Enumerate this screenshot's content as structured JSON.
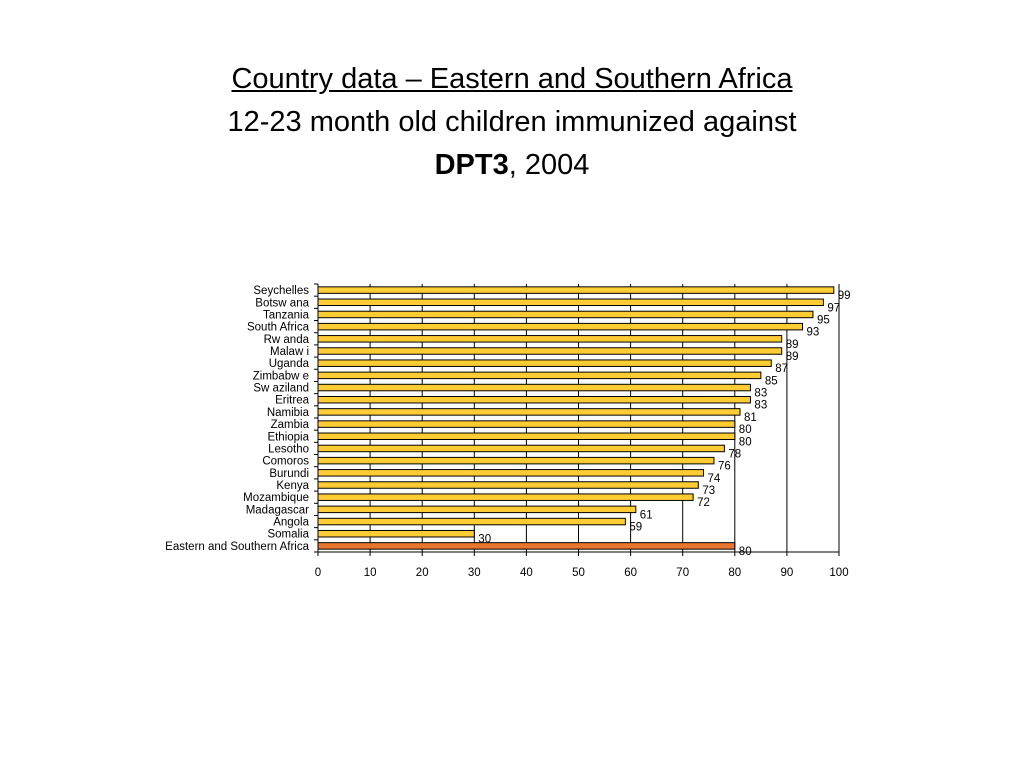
{
  "title": {
    "line1": "Country data – Eastern and Southern Africa",
    "line2": "12-23 month old children immunized against",
    "line3_bold": "DPT3",
    "line3_rest": ", 2004"
  },
  "colors": {
    "bar_fill": "#FFCC33",
    "highlight_fill": "#E8762E",
    "bar_stroke": "#000000",
    "grid": "#000000"
  },
  "chart_data": {
    "type": "bar",
    "orientation": "horizontal",
    "categories": [
      "Seychelles",
      "Botsw ana",
      "Tanzania",
      "South Africa",
      "Rw anda",
      "Malaw i",
      "Uganda",
      "Zimbabw e",
      "Sw aziland",
      "Eritrea",
      "Namibia",
      "Zambia",
      "Ethiopia",
      "Lesotho",
      "Comoros",
      "Burundi",
      "Kenya",
      "Mozambique",
      "Madagascar",
      "Angola",
      "Somalia",
      "Eastern and Southern Africa"
    ],
    "values": [
      99,
      97,
      95,
      93,
      89,
      89,
      87,
      85,
      83,
      83,
      81,
      80,
      80,
      78,
      76,
      74,
      73,
      72,
      61,
      59,
      30,
      80
    ],
    "highlight_index": 21,
    "xlim": [
      0,
      100
    ],
    "xticks": [
      0,
      10,
      20,
      30,
      40,
      50,
      60,
      70,
      80,
      90,
      100
    ],
    "grid": true,
    "data_labels": true,
    "xlabel": "",
    "ylabel": ""
  }
}
